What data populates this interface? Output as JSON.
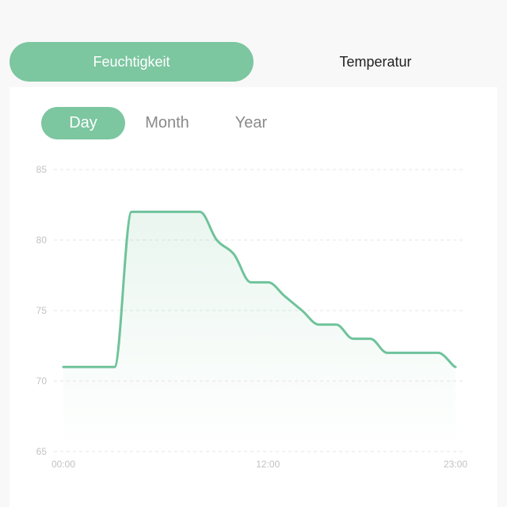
{
  "top_tabs": [
    {
      "label": "Feuchtigkeit",
      "active": true
    },
    {
      "label": "Temperatur",
      "active": false
    }
  ],
  "range_tabs": [
    {
      "label": "Day",
      "active": true
    },
    {
      "label": "Month",
      "active": false
    },
    {
      "label": "Year",
      "active": false
    }
  ],
  "colors": {
    "accent": "#7cc6a0",
    "line": "#6fc39b",
    "grid": "#e6e6e6",
    "tick": "#c2c2c2",
    "background": "#f8f8f8",
    "card": "#ffffff"
  },
  "chart_data": {
    "type": "area",
    "title": "",
    "xlabel": "",
    "ylabel": "",
    "ylim": [
      65,
      85
    ],
    "yticks": [
      "85",
      "80",
      "75",
      "70",
      "65"
    ],
    "xticks": [
      {
        "label": "00:00",
        "x": 0
      },
      {
        "label": "12:00",
        "x": 12
      },
      {
        "label": "23:00",
        "x": 23
      }
    ],
    "grid": true,
    "series": [
      {
        "x": [
          0,
          1,
          2,
          3,
          4,
          5,
          6,
          7,
          8,
          9,
          10,
          11,
          12,
          13,
          14,
          15,
          16,
          17,
          18,
          19,
          20,
          21,
          22,
          23
        ],
        "values": [
          71,
          71,
          71,
          71,
          82,
          82,
          82,
          82,
          82,
          80,
          79,
          77,
          77,
          76,
          75,
          74,
          74,
          73,
          73,
          72,
          72,
          72,
          72,
          71
        ]
      }
    ]
  }
}
